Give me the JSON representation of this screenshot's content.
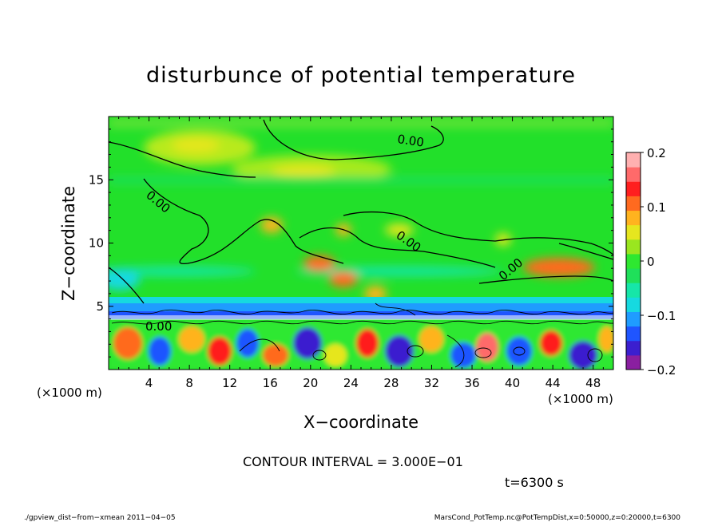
{
  "chart_data": {
    "type": "heatmap",
    "title": "disturbunce of potential temperature",
    "xlabel": "X−coordinate",
    "ylabel": "Z−coordinate",
    "x_unit_left": "(×1000 m)",
    "x_unit_right": "(×1000 m)",
    "x_range": [
      0,
      50
    ],
    "y_range": [
      0,
      20
    ],
    "x_ticks": [
      4,
      8,
      12,
      16,
      20,
      24,
      28,
      32,
      36,
      40,
      44,
      48
    ],
    "y_ticks": [
      5,
      10,
      15
    ],
    "colorbar": {
      "range": [
        -0.2,
        0.2
      ],
      "tick_labels": [
        {
          "value": 0.2,
          "label": "0.2"
        },
        {
          "value": 0.1,
          "label": "0.1"
        },
        {
          "value": 0,
          "label": "0"
        },
        {
          "value": -0.1,
          "label": "−0.1"
        },
        {
          "value": -0.2,
          "label": "−0.2"
        }
      ],
      "colors": [
        "#8a1fa0",
        "#3b1fcf",
        "#1f55ff",
        "#1f9cff",
        "#16d9e0",
        "#16e6a8",
        "#1fe05a",
        "#2ee830",
        "#9ae61f",
        "#e6e61f",
        "#ffb31f",
        "#ff6a1f",
        "#ff1f1f",
        "#ff6a6a",
        "#ffb0b0"
      ]
    },
    "contour_labels": [
      "0.00",
      "0.00",
      "0.00",
      "0.00",
      "0.00"
    ],
    "contour_interval_text": "CONTOUR INTERVAL = 3.000E−01",
    "time_text": "t=6300 s"
  },
  "footer": {
    "left": "./gpview_dist−from−xmean   2011−04−05",
    "right": "MarsCond_PotTemp.nc@PotTempDist,x=0:50000,z=0:20000,t=6300"
  }
}
